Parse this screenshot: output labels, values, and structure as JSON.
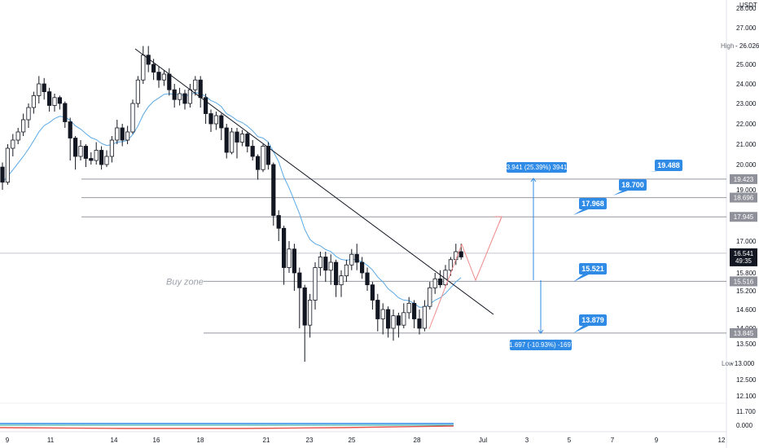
{
  "chart_data": {
    "type": "candlestick",
    "currency": "USDT",
    "y_ticks": [
      "28.000",
      "27.000",
      "25.000",
      "24.000",
      "23.000",
      "22.000",
      "21.000",
      "20.000",
      "19.000",
      "17.000",
      "15.800",
      "15.200",
      "14.600",
      "14.000",
      "13.500",
      "12.500",
      "12.100",
      "11.700",
      "0.000"
    ],
    "x_ticks": [
      "9",
      "11",
      "14",
      "16",
      "18",
      "21",
      "23",
      "25",
      "28",
      "Jul",
      "3",
      "5",
      "7",
      "9",
      "12"
    ],
    "high": {
      "label": "High",
      "value": "26.026"
    },
    "low": {
      "label": "Low",
      "value": "13.000"
    },
    "current_price": {
      "value": "16.541",
      "countdown": "49:35"
    },
    "levels": [
      {
        "value": "19.423",
        "style": "gray"
      },
      {
        "value": "18.696",
        "style": "gray"
      },
      {
        "value": "17.945",
        "style": "gray"
      },
      {
        "value": "15.516",
        "style": "gray"
      },
      {
        "value": "13.845",
        "style": "gray"
      }
    ],
    "buy_zone_label": "Buy zone",
    "callouts": [
      "19.488",
      "18.700",
      "17.968",
      "15.521",
      "13.879"
    ],
    "measure_up": "3.941 (25.39%) 3941",
    "measure_down": "-1.697 (-10.93%) -1697",
    "candles": [
      [
        19.9,
        19.3,
        19.0,
        20.1
      ],
      [
        19.3,
        20.8,
        19.2,
        21.0
      ],
      [
        20.8,
        21.2,
        20.4,
        21.5
      ],
      [
        21.2,
        21.6,
        21.0,
        21.8
      ],
      [
        21.6,
        22.2,
        21.4,
        22.5
      ],
      [
        22.2,
        22.8,
        21.8,
        23.0
      ],
      [
        22.8,
        23.4,
        22.5,
        23.6
      ],
      [
        23.4,
        24.0,
        23.0,
        24.4
      ],
      [
        24.0,
        23.6,
        23.2,
        24.3
      ],
      [
        23.6,
        22.9,
        22.6,
        23.8
      ],
      [
        22.9,
        23.3,
        22.6,
        23.5
      ],
      [
        23.3,
        23.0,
        22.7,
        23.4
      ],
      [
        23.0,
        22.1,
        21.8,
        23.1
      ],
      [
        22.1,
        21.3,
        20.2,
        22.3
      ],
      [
        21.3,
        20.4,
        19.8,
        21.4
      ],
      [
        20.4,
        20.9,
        20.2,
        21.2
      ],
      [
        20.9,
        20.3,
        19.9,
        21.0
      ],
      [
        20.3,
        20.2,
        20.0,
        20.6
      ],
      [
        20.2,
        20.7,
        20.0,
        21.1
      ],
      [
        20.7,
        20.0,
        19.8,
        20.9
      ],
      [
        20.0,
        20.4,
        19.9,
        20.7
      ],
      [
        20.4,
        21.2,
        20.1,
        21.4
      ],
      [
        21.2,
        21.8,
        21.0,
        22.2
      ],
      [
        21.8,
        21.2,
        20.9,
        22.0
      ],
      [
        21.2,
        21.6,
        21.0,
        21.9
      ],
      [
        21.6,
        23.0,
        21.5,
        23.2
      ],
      [
        23.0,
        24.2,
        22.8,
        24.4
      ],
      [
        24.2,
        25.5,
        24.0,
        26.0
      ],
      [
        25.5,
        25.0,
        24.6,
        26.0
      ],
      [
        25.0,
        24.6,
        24.2,
        25.3
      ],
      [
        24.6,
        24.2,
        23.8,
        24.9
      ],
      [
        24.2,
        24.5,
        23.9,
        24.7
      ],
      [
        24.5,
        23.7,
        23.4,
        24.8
      ],
      [
        23.7,
        23.2,
        22.8,
        24.0
      ],
      [
        23.2,
        23.5,
        22.9,
        23.8
      ],
      [
        23.5,
        23.0,
        22.7,
        23.7
      ],
      [
        23.0,
        23.7,
        22.8,
        24.0
      ],
      [
        23.7,
        24.2,
        23.4,
        24.4
      ],
      [
        24.2,
        23.3,
        22.8,
        24.4
      ],
      [
        23.3,
        22.5,
        22.0,
        23.5
      ],
      [
        22.5,
        22.0,
        21.6,
        22.7
      ],
      [
        22.0,
        22.4,
        21.7,
        22.6
      ],
      [
        22.4,
        21.8,
        21.2,
        22.5
      ],
      [
        21.8,
        20.6,
        20.3,
        22.0
      ],
      [
        20.6,
        21.6,
        20.5,
        21.8
      ],
      [
        21.6,
        21.1,
        20.3,
        21.8
      ],
      [
        21.1,
        21.5,
        20.9,
        21.7
      ],
      [
        21.5,
        20.9,
        20.6,
        21.6
      ],
      [
        20.9,
        20.4,
        20.2,
        21.2
      ],
      [
        20.4,
        19.8,
        19.4,
        20.5
      ],
      [
        19.8,
        20.9,
        19.7,
        21.0
      ],
      [
        20.9,
        20.0,
        19.8,
        21.1
      ],
      [
        20.0,
        18.0,
        17.6,
        20.1
      ],
      [
        18.0,
        17.5,
        17.0,
        18.2
      ],
      [
        17.5,
        16.0,
        15.4,
        17.6
      ],
      [
        16.0,
        16.7,
        15.8,
        17.0
      ],
      [
        16.7,
        15.8,
        15.2,
        16.9
      ],
      [
        15.8,
        15.3,
        14.0,
        16.0
      ],
      [
        15.3,
        14.1,
        13.0,
        15.4
      ],
      [
        14.1,
        14.9,
        13.7,
        15.1
      ],
      [
        14.9,
        16.0,
        14.6,
        16.2
      ],
      [
        16.0,
        16.4,
        15.7,
        16.6
      ],
      [
        16.4,
        15.9,
        15.5,
        16.6
      ],
      [
        15.9,
        16.2,
        15.4,
        16.5
      ],
      [
        16.2,
        15.4,
        15.0,
        16.3
      ],
      [
        15.4,
        15.7,
        15.0,
        15.9
      ],
      [
        15.7,
        16.1,
        15.5,
        16.3
      ],
      [
        16.1,
        16.5,
        15.9,
        16.7
      ],
      [
        16.5,
        16.2,
        15.9,
        16.9
      ],
      [
        16.2,
        15.8,
        15.6,
        16.4
      ],
      [
        15.8,
        15.4,
        15.2,
        16.0
      ],
      [
        15.4,
        14.9,
        14.6,
        15.5
      ],
      [
        14.9,
        14.3,
        13.9,
        15.1
      ],
      [
        14.3,
        14.6,
        13.8,
        14.8
      ],
      [
        14.6,
        14.0,
        13.7,
        14.7
      ],
      [
        14.0,
        14.4,
        13.6,
        14.6
      ],
      [
        14.4,
        14.1,
        13.7,
        14.5
      ],
      [
        14.1,
        14.5,
        14.0,
        14.8
      ],
      [
        14.5,
        14.8,
        14.3,
        15.0
      ],
      [
        14.8,
        14.3,
        14.0,
        14.9
      ],
      [
        14.3,
        14.0,
        13.8,
        14.6
      ],
      [
        14.0,
        14.7,
        13.9,
        14.9
      ],
      [
        14.7,
        15.3,
        14.6,
        15.5
      ],
      [
        15.3,
        15.6,
        15.1,
        15.8
      ],
      [
        15.6,
        15.4,
        15.3,
        15.9
      ],
      [
        15.4,
        15.9,
        15.3,
        16.1
      ],
      [
        15.9,
        16.3,
        15.7,
        16.4
      ],
      [
        16.3,
        16.6,
        16.1,
        16.9
      ],
      [
        16.6,
        16.4,
        16.3,
        16.9
      ]
    ]
  }
}
